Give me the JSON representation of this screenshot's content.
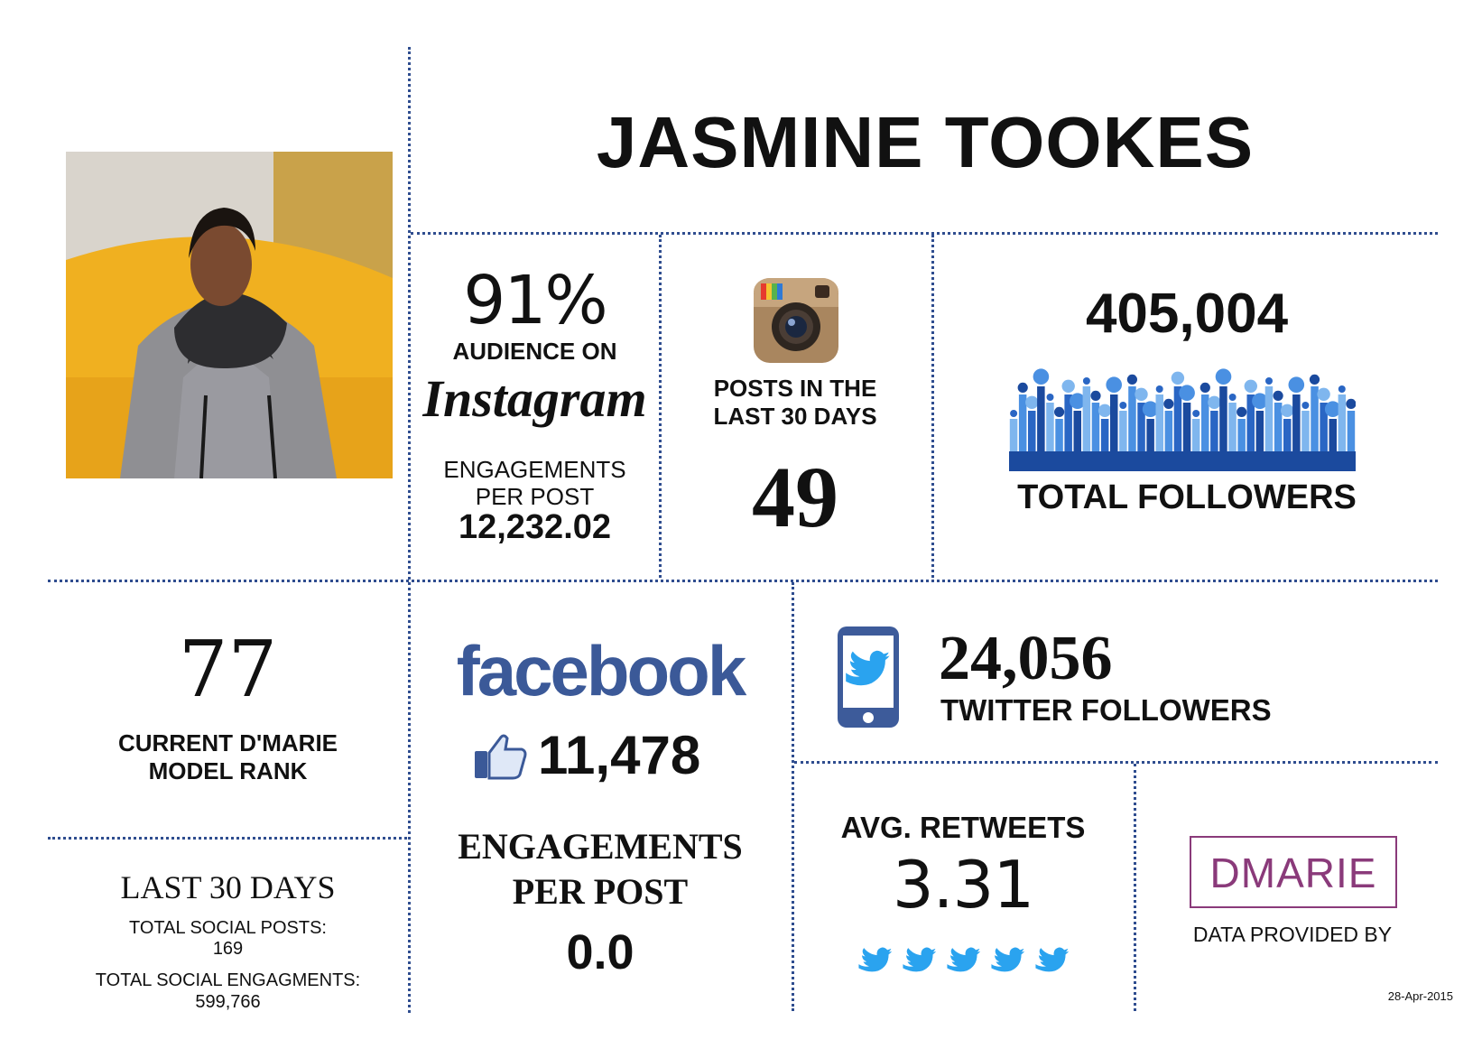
{
  "model": {
    "name": "JASMINE TOOKES",
    "photo": "runway-photo"
  },
  "instagram": {
    "audience_percent": "91%",
    "audience_label": "AUDIENCE ON",
    "brand": "Instagram",
    "engagements_label_1": "ENGAGEMENTS",
    "engagements_label_2": "PER POST",
    "engagements_per_post": "12,232.02",
    "icon": "instagram-camera-icon",
    "posts_label_1": "POSTS IN THE",
    "posts_label_2": "LAST 30 DAYS",
    "posts_count": "49"
  },
  "followers": {
    "total": "405,004",
    "label": "TOTAL FOLLOWERS",
    "icon": "crowd-icon",
    "colors": [
      "#1b4a9e",
      "#2a66c4",
      "#4a90e2",
      "#7fb6ee"
    ]
  },
  "rank": {
    "value": "77",
    "label_1": "CURRENT D'MARIE",
    "label_2": "MODEL RANK"
  },
  "last30": {
    "title": "LAST 30 DAYS",
    "posts_label": "TOTAL SOCIAL POSTS:",
    "posts_value": "169",
    "engagements_label": "TOTAL SOCIAL ENGAGMENTS:",
    "engagements_value": "599,766"
  },
  "facebook": {
    "brand": "facebook",
    "brand_color": "#3b5998",
    "likes_icon": "thumbs-up-icon",
    "likes": "11,478",
    "engagements_label_1": "ENGAGEMENTS",
    "engagements_label_2": "PER POST",
    "engagements_per_post": "0.0"
  },
  "twitter": {
    "icon": "phone-twitter-icon",
    "followers": "24,056",
    "followers_label": "TWITTER FOLLOWERS",
    "retweets_label": "AVG. RETWEETS",
    "retweets_value": "3.31",
    "bird_color": "#2aa3ef"
  },
  "provider": {
    "logo_text": "DMARIE",
    "logo_color": "#8a3a7a",
    "label": "DATA PROVIDED BY",
    "date": "28-Apr-2015"
  }
}
